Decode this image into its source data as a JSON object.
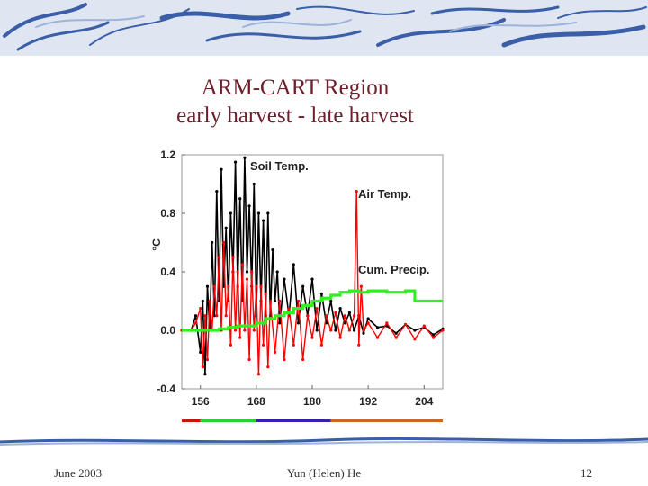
{
  "slide": {
    "title_line1": "ARM-CART Region",
    "title_line2": "early harvest - late harvest"
  },
  "footer": {
    "date": "June 2003",
    "author": "Yun (Helen) He",
    "page": "12"
  },
  "colors": {
    "title": "#6b1f2a",
    "soil": "#000000",
    "air": "#ff0000",
    "precip": "#33ee22",
    "banner": "#3a5fa8"
  },
  "chart_data": {
    "type": "line",
    "ylabel": "°C",
    "xlim": [
      152,
      208
    ],
    "ylim": [
      -0.4,
      1.2
    ],
    "x_ticks": [
      "156",
      "168",
      "180",
      "192",
      "204"
    ],
    "y_ticks": [
      "1.2",
      "0.8",
      "0.4",
      "0.0",
      "-0.4"
    ],
    "annotations": [
      "Soil Temp.",
      "Air Temp.",
      "Cum. Precip."
    ],
    "series": [
      {
        "name": "Soil Temp.",
        "color": "#000000",
        "x": [
          152,
          154,
          155,
          156,
          156.5,
          157,
          157.5,
          158,
          158.5,
          159,
          159.5,
          160,
          160.5,
          161,
          161.5,
          162,
          162.5,
          163,
          163.5,
          164,
          164.5,
          165,
          165.5,
          166,
          166.5,
          167,
          167.5,
          168,
          168.5,
          169,
          169.5,
          170,
          170.5,
          171,
          171.5,
          172,
          172.5,
          173,
          174,
          175,
          176,
          177,
          178,
          179,
          180,
          181,
          182,
          183,
          184,
          185,
          186,
          187,
          188,
          189,
          190,
          191,
          192,
          194,
          196,
          198,
          200,
          202,
          204,
          206,
          208
        ],
        "y": [
          0.0,
          0.0,
          0.1,
          -0.15,
          0.2,
          -0.3,
          0.3,
          0.0,
          0.6,
          0.1,
          0.95,
          0.2,
          1.1,
          0.3,
          0.7,
          0.2,
          0.8,
          0.4,
          1.15,
          0.3,
          0.9,
          0.2,
          1.18,
          0.4,
          0.85,
          0.3,
          1.0,
          0.1,
          0.8,
          0.2,
          0.75,
          0.1,
          0.8,
          0.1,
          0.55,
          0.2,
          0.4,
          0.05,
          0.35,
          0.1,
          0.45,
          0.05,
          0.3,
          0.1,
          0.35,
          0.0,
          0.25,
          0.05,
          0.2,
          0.0,
          0.15,
          0.05,
          0.12,
          0.0,
          0.1,
          -0.02,
          0.08,
          0.02,
          0.03,
          -0.02,
          0.04,
          0.0,
          0.02,
          -0.03,
          0.01
        ]
      },
      {
        "name": "Air Temp.",
        "color": "#ff0000",
        "x": [
          152,
          154,
          155,
          156,
          156.5,
          157,
          157.5,
          158,
          158.5,
          159,
          159.5,
          160,
          160.5,
          161,
          161.5,
          162,
          162.5,
          163,
          163.5,
          164,
          164.5,
          165,
          165.5,
          166,
          166.5,
          167,
          167.5,
          168,
          168.5,
          169,
          169.5,
          170,
          170.5,
          171,
          172,
          173,
          174,
          175,
          176,
          177,
          178,
          179,
          180,
          181,
          182,
          183,
          184,
          185,
          186,
          187,
          188,
          189,
          189.5,
          190,
          190.5,
          191,
          192,
          194,
          196,
          198,
          200,
          202,
          204,
          206,
          208
        ],
        "y": [
          0.0,
          0.0,
          0.05,
          0.15,
          -0.25,
          0.1,
          -0.2,
          0.2,
          0.0,
          0.3,
          0.1,
          0.5,
          0.0,
          0.6,
          0.1,
          0.3,
          -0.1,
          0.5,
          0.0,
          0.4,
          -0.05,
          0.45,
          0.0,
          0.35,
          -0.2,
          0.4,
          0.0,
          0.3,
          -0.3,
          0.3,
          -0.1,
          0.25,
          -0.25,
          0.2,
          -0.15,
          0.2,
          -0.2,
          0.15,
          -0.1,
          0.2,
          -0.2,
          0.1,
          -0.05,
          0.15,
          -0.1,
          0.1,
          0.0,
          0.12,
          -0.05,
          0.1,
          0.0,
          0.1,
          0.95,
          -0.1,
          0.3,
          0.0,
          0.05,
          -0.05,
          0.05,
          -0.05,
          0.04,
          -0.06,
          0.03,
          -0.05,
          0.0
        ]
      },
      {
        "name": "Cum. Precip.",
        "color": "#33ee22",
        "x": [
          152,
          156,
          158,
          160,
          162,
          164,
          166,
          168,
          170,
          172,
          174,
          176,
          178,
          180,
          182,
          184,
          186,
          188,
          190,
          192,
          194,
          196,
          198,
          200,
          202,
          204,
          206,
          208
        ],
        "y": [
          0.0,
          0.0,
          0.0,
          0.01,
          0.02,
          0.03,
          0.03,
          0.05,
          0.08,
          0.1,
          0.12,
          0.15,
          0.17,
          0.2,
          0.22,
          0.24,
          0.26,
          0.27,
          0.26,
          0.27,
          0.27,
          0.26,
          0.26,
          0.27,
          0.2,
          0.2,
          0.2,
          0.2
        ]
      }
    ],
    "period_bar": [
      {
        "from": 152,
        "to": 156,
        "color": "#cc1111"
      },
      {
        "from": 156,
        "to": 168,
        "color": "#33cc33"
      },
      {
        "from": 168,
        "to": 184,
        "color": "#3322aa"
      },
      {
        "from": 184,
        "to": 208,
        "color": "#cc6622"
      }
    ]
  }
}
